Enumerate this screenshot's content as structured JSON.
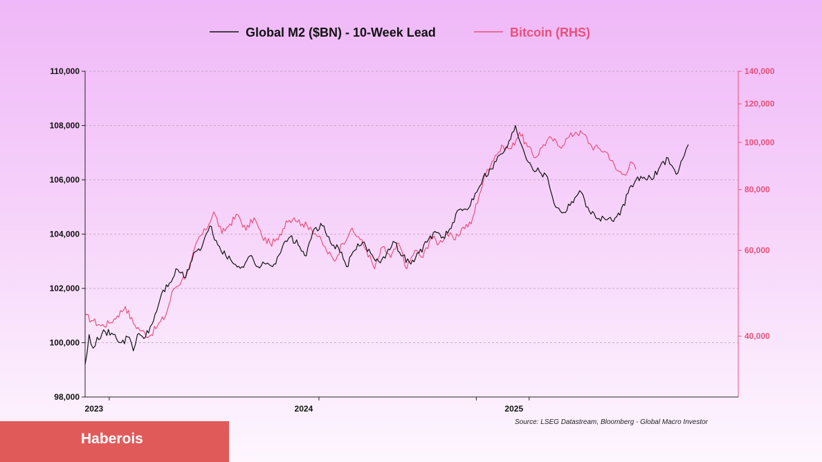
{
  "chart_data": {
    "type": "line",
    "legend_position": "top-center",
    "grid": true,
    "colors": {
      "m2": "#111111",
      "btc": "#e8507a",
      "axis_right": "#e8507a"
    },
    "x_axis": {
      "range": [
        "2022-11-20",
        "2025-12-31"
      ],
      "ticks": [
        "2023-01-01",
        "2024-01-01",
        "2025-01-01"
      ],
      "tick_labels": [
        "2023",
        "2024",
        "2025"
      ],
      "minor_ticks": [
        "2024-10-01"
      ]
    },
    "y_left": {
      "range": [
        98000,
        110000
      ],
      "ticks": [
        98000,
        100000,
        102000,
        104000,
        106000,
        108000,
        110000
      ],
      "tick_labels": [
        "98,000",
        "100,000",
        "102,000",
        "104,000",
        "106,000",
        "108,000",
        "110,000"
      ]
    },
    "y_right": {
      "scale": "log",
      "range": [
        30000,
        140000
      ],
      "ticks": [
        40000,
        60000,
        80000,
        100000,
        120000,
        140000
      ],
      "tick_labels": [
        "40,000",
        "60,000",
        "80,000",
        "100,000",
        "120,000",
        "140,000"
      ]
    },
    "series": [
      {
        "name": "Global M2 ($BN) - 10-Week Lead",
        "axis": "left",
        "points": [
          [
            "2022-11-20",
            99200
          ],
          [
            "2022-11-27",
            100300
          ],
          [
            "2022-12-04",
            99800
          ],
          [
            "2022-12-11",
            100200
          ],
          [
            "2022-12-25",
            100400
          ],
          [
            "2023-01-08",
            100300
          ],
          [
            "2023-01-22",
            100000
          ],
          [
            "2023-02-05",
            100200
          ],
          [
            "2023-02-12",
            99700
          ],
          [
            "2023-02-19",
            100300
          ],
          [
            "2023-03-05",
            100200
          ],
          [
            "2023-03-19",
            100800
          ],
          [
            "2023-04-02",
            101800
          ],
          [
            "2023-04-16",
            102200
          ],
          [
            "2023-04-30",
            102700
          ],
          [
            "2023-05-14",
            102400
          ],
          [
            "2023-05-28",
            103300
          ],
          [
            "2023-06-11",
            103500
          ],
          [
            "2023-06-25",
            104300
          ],
          [
            "2023-07-09",
            103600
          ],
          [
            "2023-07-23",
            103200
          ],
          [
            "2023-08-06",
            102900
          ],
          [
            "2023-08-20",
            102800
          ],
          [
            "2023-09-03",
            103200
          ],
          [
            "2023-09-17",
            102800
          ],
          [
            "2023-10-01",
            102900
          ],
          [
            "2023-10-15",
            102900
          ],
          [
            "2023-10-29",
            103500
          ],
          [
            "2023-11-12",
            103900
          ],
          [
            "2023-11-26",
            103600
          ],
          [
            "2023-12-10",
            103200
          ],
          [
            "2023-12-24",
            104200
          ],
          [
            "2024-01-07",
            104300
          ],
          [
            "2024-01-21",
            103700
          ],
          [
            "2024-02-04",
            103500
          ],
          [
            "2024-02-18",
            102800
          ],
          [
            "2024-03-03",
            103400
          ],
          [
            "2024-03-17",
            103700
          ],
          [
            "2024-03-31",
            103300
          ],
          [
            "2024-04-14",
            103000
          ],
          [
            "2024-04-28",
            103300
          ],
          [
            "2024-05-12",
            103700
          ],
          [
            "2024-05-26",
            103200
          ],
          [
            "2024-06-09",
            102900
          ],
          [
            "2024-06-23",
            103300
          ],
          [
            "2024-07-07",
            103700
          ],
          [
            "2024-07-21",
            104100
          ],
          [
            "2024-08-04",
            103900
          ],
          [
            "2024-08-18",
            104200
          ],
          [
            "2024-09-01",
            104900
          ],
          [
            "2024-09-15",
            104900
          ],
          [
            "2024-09-29",
            105500
          ],
          [
            "2024-10-13",
            106100
          ],
          [
            "2024-10-27",
            106400
          ],
          [
            "2024-11-10",
            106900
          ],
          [
            "2024-11-24",
            107200
          ],
          [
            "2024-12-08",
            108000
          ],
          [
            "2024-12-22",
            107100
          ],
          [
            "2025-01-05",
            106500
          ],
          [
            "2025-01-19",
            106300
          ],
          [
            "2025-02-02",
            106100
          ],
          [
            "2025-02-16",
            105000
          ],
          [
            "2025-03-02",
            104800
          ],
          [
            "2025-03-16",
            105200
          ],
          [
            "2025-03-30",
            105600
          ],
          [
            "2025-04-13",
            105000
          ],
          [
            "2025-04-27",
            104600
          ],
          [
            "2025-05-11",
            104600
          ],
          [
            "2025-05-25",
            104500
          ],
          [
            "2025-06-08",
            104700
          ],
          [
            "2025-06-22",
            105500
          ],
          [
            "2025-07-06",
            106000
          ],
          [
            "2025-07-20",
            106100
          ],
          [
            "2025-08-03",
            106000
          ],
          [
            "2025-08-17",
            106500
          ],
          [
            "2025-08-31",
            106800
          ],
          [
            "2025-09-14",
            106200
          ],
          [
            "2025-09-28",
            106900
          ],
          [
            "2025-10-05",
            107300
          ]
        ]
      },
      {
        "name": "Bitcoin (RHS)",
        "axis": "right",
        "points": [
          [
            "2022-11-20",
            44000
          ],
          [
            "2022-12-04",
            43000
          ],
          [
            "2022-12-18",
            42000
          ],
          [
            "2023-01-01",
            42500
          ],
          [
            "2023-01-15",
            44000
          ],
          [
            "2023-01-29",
            46000
          ],
          [
            "2023-02-12",
            42500
          ],
          [
            "2023-02-26",
            41000
          ],
          [
            "2023-03-12",
            40000
          ],
          [
            "2023-03-26",
            42000
          ],
          [
            "2023-04-09",
            44000
          ],
          [
            "2023-04-23",
            50000
          ],
          [
            "2023-05-07",
            52000
          ],
          [
            "2023-05-21",
            55000
          ],
          [
            "2023-06-04",
            63000
          ],
          [
            "2023-06-18",
            66000
          ],
          [
            "2023-07-02",
            72000
          ],
          [
            "2023-07-16",
            65000
          ],
          [
            "2023-07-30",
            68000
          ],
          [
            "2023-08-13",
            71000
          ],
          [
            "2023-08-27",
            66000
          ],
          [
            "2023-09-10",
            70000
          ],
          [
            "2023-09-24",
            64000
          ],
          [
            "2023-10-08",
            62000
          ],
          [
            "2023-10-22",
            63000
          ],
          [
            "2023-11-05",
            69000
          ],
          [
            "2023-11-19",
            70000
          ],
          [
            "2023-12-03",
            68000
          ],
          [
            "2023-12-17",
            67000
          ],
          [
            "2023-12-31",
            64000
          ],
          [
            "2024-01-14",
            60000
          ],
          [
            "2024-01-28",
            57000
          ],
          [
            "2024-02-11",
            62000
          ],
          [
            "2024-02-25",
            66000
          ],
          [
            "2024-03-10",
            64000
          ],
          [
            "2024-03-24",
            60000
          ],
          [
            "2024-04-07",
            55000
          ],
          [
            "2024-04-21",
            61000
          ],
          [
            "2024-05-05",
            58000
          ],
          [
            "2024-05-19",
            62000
          ],
          [
            "2024-06-02",
            55000
          ],
          [
            "2024-06-16",
            60000
          ],
          [
            "2024-06-30",
            58000
          ],
          [
            "2024-07-14",
            64000
          ],
          [
            "2024-07-28",
            62000
          ],
          [
            "2024-08-11",
            65000
          ],
          [
            "2024-08-25",
            63000
          ],
          [
            "2024-09-08",
            67000
          ],
          [
            "2024-09-22",
            68000
          ],
          [
            "2024-10-06",
            78000
          ],
          [
            "2024-10-20",
            88000
          ],
          [
            "2024-11-03",
            94000
          ],
          [
            "2024-11-17",
            98000
          ],
          [
            "2024-12-01",
            97000
          ],
          [
            "2024-12-15",
            105000
          ],
          [
            "2024-12-29",
            98000
          ],
          [
            "2025-01-12",
            93000
          ],
          [
            "2025-01-26",
            99000
          ],
          [
            "2025-02-09",
            102000
          ],
          [
            "2025-02-23",
            98000
          ],
          [
            "2025-03-09",
            102000
          ],
          [
            "2025-03-23",
            105000
          ],
          [
            "2025-04-06",
            104000
          ],
          [
            "2025-04-20",
            98000
          ],
          [
            "2025-05-04",
            97000
          ],
          [
            "2025-05-18",
            95000
          ],
          [
            "2025-06-01",
            88000
          ],
          [
            "2025-06-15",
            86000
          ],
          [
            "2025-06-29",
            91000
          ],
          [
            "2025-07-06",
            88000
          ]
        ]
      }
    ],
    "source": "Source: LSEG Datastream, Bloomberg - Global Macro Investor"
  },
  "brand": {
    "name": "Haberois"
  }
}
